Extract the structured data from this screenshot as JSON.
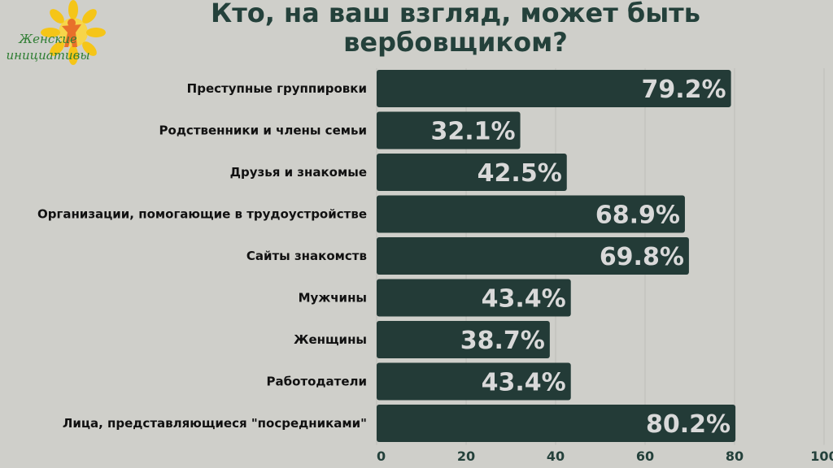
{
  "logo": {
    "line1": "Женские",
    "line2": "инициативы",
    "colors": {
      "petals": "#f5c518",
      "figure": "#e8702a",
      "text": "#2e7d32"
    }
  },
  "chart_data": {
    "type": "bar",
    "orientation": "horizontal",
    "title": "Кто, на ваш взгляд, может быть вербовщиком?",
    "categories": [
      "Преступные группировки",
      "Родственники и члены семьи",
      "Друзья и знакомые",
      "Организации, помогающие в трудоустройстве",
      "Сайты знакомств",
      "Мужчины",
      "Женщины",
      "Работодатели",
      "Лица, представляющиеся \"посредниками\""
    ],
    "values": [
      79.2,
      32.1,
      42.5,
      68.9,
      69.8,
      43.4,
      38.7,
      43.4,
      80.2
    ],
    "value_labels": [
      "79.2%",
      "32.1%",
      "42.5%",
      "68.9%",
      "69.8%",
      "43.4%",
      "38.7%",
      "43.4%",
      "80.2%"
    ],
    "xlim": [
      0,
      100
    ],
    "ticks": [
      0,
      20,
      40,
      60,
      80,
      100
    ],
    "grid": true,
    "bar_color": "#233b37",
    "value_label_color": "#d9d9d9",
    "grid_color": "#bdbdb8"
  }
}
